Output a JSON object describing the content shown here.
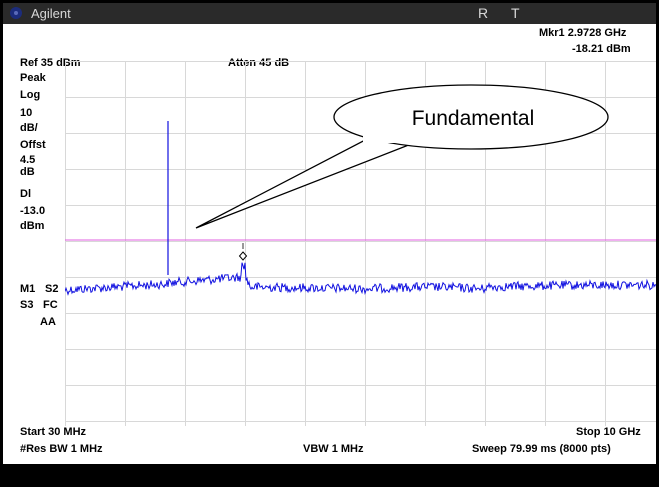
{
  "title_bar": {
    "brand": "Agilent",
    "indicator_r": "R",
    "indicator_t": "T"
  },
  "header": {
    "marker_label": "Mkr1 2.9728 GHz",
    "marker_value": "-18.21 dBm",
    "ref_level": "Ref 35 dBm",
    "attenuation": "Atten 45 dB"
  },
  "left_panel": {
    "detector": "Peak",
    "scale_type": "Log",
    "scale_value": "10",
    "scale_unit": "dB/",
    "offset_label": "Offst",
    "offset_value": "4.5",
    "offset_unit": "dB",
    "display_line_label": "Dl",
    "display_line_value": "-13.0",
    "display_line_unit": "dBm",
    "trace_m1": "M1",
    "trace_s2": "S2",
    "trace_s3": "S3",
    "trace_fc": "FC",
    "trace_aa": "AA"
  },
  "footer": {
    "start": "Start 30 MHz",
    "stop": "Stop 10 GHz",
    "res_bw": "#Res BW 1 MHz",
    "vbw": "VBW 1 MHz",
    "sweep": "Sweep 79.99 ms (8000 pts)"
  },
  "annotation": {
    "callout_text": "Fundamental"
  },
  "colors": {
    "trace": "#1010e0",
    "display_line": "#e060e0",
    "grid": "#d8d8d8",
    "title_bar": "#2a2a2a"
  }
}
